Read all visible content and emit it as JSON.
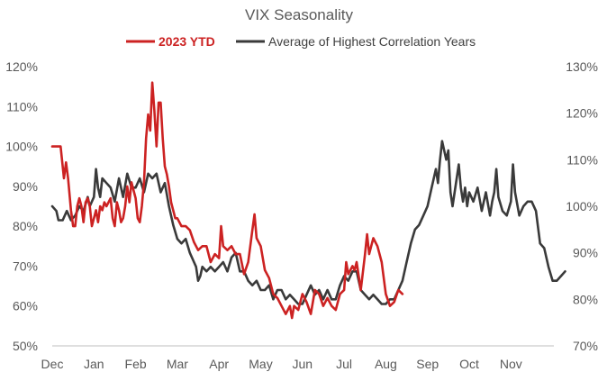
{
  "chart_data": {
    "type": "line",
    "title": "VIX Seasonality",
    "xlabel": "",
    "ylabel_left": "",
    "ylabel_right": "",
    "x_tick_labels": [
      "Dec",
      "Jan",
      "Feb",
      "Mar",
      "Apr",
      "May",
      "Jun",
      "Jul",
      "Aug",
      "Sep",
      "Oct",
      "Nov"
    ],
    "y_left_ticks": [
      "50%",
      "60%",
      "70%",
      "80%",
      "90%",
      "100%",
      "110%",
      "120%"
    ],
    "y_right_ticks": [
      "70%",
      "80%",
      "90%",
      "100%",
      "110%",
      "120%",
      "130%"
    ],
    "ylim_left": [
      50,
      120
    ],
    "ylim_right": [
      70,
      130
    ],
    "grid": false,
    "legend_position": "top-center",
    "x_unit": "months since start of December",
    "series": [
      {
        "name": "2023 YTD",
        "color": "#cc2222",
        "axis": "left",
        "label_bold": true,
        "points": [
          [
            0.0,
            100
          ],
          [
            0.1,
            100
          ],
          [
            0.2,
            100
          ],
          [
            0.28,
            92
          ],
          [
            0.33,
            96
          ],
          [
            0.38,
            92
          ],
          [
            0.45,
            84
          ],
          [
            0.5,
            80
          ],
          [
            0.55,
            80
          ],
          [
            0.6,
            85
          ],
          [
            0.65,
            87
          ],
          [
            0.7,
            85
          ],
          [
            0.75,
            81
          ],
          [
            0.8,
            86
          ],
          [
            0.85,
            87
          ],
          [
            0.9,
            85
          ],
          [
            0.95,
            80
          ],
          [
            1.0,
            82
          ],
          [
            1.05,
            84
          ],
          [
            1.1,
            81
          ],
          [
            1.15,
            85
          ],
          [
            1.2,
            84
          ],
          [
            1.25,
            86
          ],
          [
            1.3,
            85
          ],
          [
            1.35,
            86
          ],
          [
            1.4,
            87
          ],
          [
            1.45,
            82
          ],
          [
            1.5,
            80
          ],
          [
            1.55,
            86
          ],
          [
            1.6,
            84
          ],
          [
            1.65,
            81
          ],
          [
            1.7,
            82
          ],
          [
            1.75,
            85
          ],
          [
            1.8,
            90
          ],
          [
            1.85,
            86
          ],
          [
            1.9,
            91
          ],
          [
            1.95,
            89
          ],
          [
            2.0,
            87
          ],
          [
            2.05,
            82
          ],
          [
            2.1,
            81
          ],
          [
            2.15,
            85
          ],
          [
            2.2,
            91
          ],
          [
            2.25,
            102
          ],
          [
            2.3,
            108
          ],
          [
            2.35,
            104
          ],
          [
            2.4,
            116
          ],
          [
            2.45,
            109
          ],
          [
            2.5,
            100
          ],
          [
            2.55,
            111
          ],
          [
            2.6,
            111
          ],
          [
            2.65,
            102
          ],
          [
            2.7,
            95
          ],
          [
            2.75,
            93
          ],
          [
            2.8,
            90
          ],
          [
            2.85,
            86
          ],
          [
            2.9,
            84
          ],
          [
            2.95,
            82
          ],
          [
            3.0,
            82
          ],
          [
            3.1,
            80
          ],
          [
            3.2,
            80
          ],
          [
            3.3,
            79
          ],
          [
            3.4,
            76
          ],
          [
            3.5,
            74
          ],
          [
            3.6,
            75
          ],
          [
            3.7,
            75
          ],
          [
            3.8,
            71
          ],
          [
            3.9,
            73
          ],
          [
            4.0,
            72
          ],
          [
            4.05,
            80
          ],
          [
            4.1,
            75
          ],
          [
            4.2,
            74
          ],
          [
            4.3,
            75
          ],
          [
            4.4,
            73
          ],
          [
            4.5,
            73
          ],
          [
            4.6,
            68
          ],
          [
            4.7,
            71
          ],
          [
            4.8,
            79
          ],
          [
            4.85,
            83
          ],
          [
            4.9,
            77
          ],
          [
            5.0,
            75
          ],
          [
            5.1,
            69
          ],
          [
            5.2,
            67
          ],
          [
            5.3,
            63
          ],
          [
            5.4,
            62
          ],
          [
            5.5,
            60
          ],
          [
            5.6,
            58
          ],
          [
            5.7,
            60
          ],
          [
            5.75,
            57
          ],
          [
            5.8,
            60
          ],
          [
            5.9,
            59
          ],
          [
            6.0,
            63
          ],
          [
            6.1,
            61
          ],
          [
            6.2,
            58
          ],
          [
            6.3,
            64
          ],
          [
            6.4,
            63
          ],
          [
            6.5,
            60
          ],
          [
            6.6,
            62
          ],
          [
            6.7,
            60
          ],
          [
            6.8,
            59
          ],
          [
            6.9,
            63
          ],
          [
            7.0,
            64
          ],
          [
            7.05,
            71
          ],
          [
            7.1,
            68
          ],
          [
            7.2,
            70
          ],
          [
            7.25,
            69
          ],
          [
            7.3,
            71
          ],
          [
            7.4,
            64
          ],
          [
            7.5,
            73
          ],
          [
            7.55,
            78
          ],
          [
            7.6,
            73
          ],
          [
            7.7,
            77
          ],
          [
            7.8,
            75
          ],
          [
            7.9,
            71
          ],
          [
            8.0,
            63
          ],
          [
            8.1,
            60
          ],
          [
            8.2,
            61
          ],
          [
            8.3,
            64
          ],
          [
            8.4,
            63
          ]
        ]
      },
      {
        "name": "Average of Highest Correlation Years",
        "color": "#3a3a3a",
        "axis": "right",
        "label_bold": false,
        "points": [
          [
            0.0,
            100
          ],
          [
            0.1,
            99
          ],
          [
            0.15,
            97
          ],
          [
            0.25,
            97
          ],
          [
            0.35,
            99
          ],
          [
            0.45,
            97
          ],
          [
            0.55,
            98
          ],
          [
            0.65,
            100
          ],
          [
            0.75,
            99
          ],
          [
            0.85,
            102
          ],
          [
            0.9,
            100
          ],
          [
            1.0,
            102
          ],
          [
            1.05,
            108
          ],
          [
            1.1,
            104
          ],
          [
            1.15,
            102
          ],
          [
            1.2,
            106
          ],
          [
            1.3,
            105
          ],
          [
            1.4,
            104
          ],
          [
            1.5,
            101
          ],
          [
            1.6,
            106
          ],
          [
            1.7,
            102
          ],
          [
            1.8,
            107
          ],
          [
            1.9,
            104
          ],
          [
            2.0,
            104
          ],
          [
            2.1,
            106
          ],
          [
            2.2,
            103
          ],
          [
            2.3,
            107
          ],
          [
            2.4,
            106
          ],
          [
            2.5,
            107
          ],
          [
            2.6,
            103
          ],
          [
            2.7,
            105
          ],
          [
            2.8,
            100
          ],
          [
            2.9,
            96
          ],
          [
            3.0,
            93
          ],
          [
            3.1,
            92
          ],
          [
            3.2,
            93
          ],
          [
            3.3,
            90
          ],
          [
            3.4,
            88
          ],
          [
            3.45,
            87
          ],
          [
            3.5,
            84
          ],
          [
            3.55,
            85
          ],
          [
            3.6,
            87
          ],
          [
            3.7,
            86
          ],
          [
            3.8,
            87
          ],
          [
            3.9,
            86
          ],
          [
            4.0,
            87
          ],
          [
            4.1,
            88
          ],
          [
            4.2,
            86
          ],
          [
            4.3,
            89
          ],
          [
            4.4,
            90
          ],
          [
            4.5,
            86
          ],
          [
            4.6,
            86
          ],
          [
            4.7,
            84
          ],
          [
            4.8,
            83
          ],
          [
            4.9,
            84
          ],
          [
            5.0,
            82
          ],
          [
            5.1,
            82
          ],
          [
            5.2,
            83
          ],
          [
            5.3,
            80
          ],
          [
            5.4,
            82
          ],
          [
            5.5,
            82
          ],
          [
            5.6,
            80
          ],
          [
            5.7,
            81
          ],
          [
            5.8,
            80
          ],
          [
            5.9,
            79
          ],
          [
            6.0,
            79
          ],
          [
            6.1,
            81
          ],
          [
            6.2,
            83
          ],
          [
            6.3,
            81
          ],
          [
            6.4,
            82
          ],
          [
            6.5,
            80
          ],
          [
            6.6,
            82
          ],
          [
            6.7,
            80
          ],
          [
            6.8,
            80
          ],
          [
            6.9,
            83
          ],
          [
            7.0,
            85
          ],
          [
            7.1,
            84
          ],
          [
            7.2,
            86
          ],
          [
            7.3,
            86
          ],
          [
            7.4,
            82
          ],
          [
            7.5,
            81
          ],
          [
            7.6,
            80
          ],
          [
            7.7,
            81
          ],
          [
            7.8,
            80
          ],
          [
            7.9,
            79
          ],
          [
            8.0,
            79
          ],
          [
            8.1,
            80
          ],
          [
            8.2,
            80
          ],
          [
            8.3,
            82
          ],
          [
            8.4,
            84
          ],
          [
            8.5,
            88
          ],
          [
            8.6,
            92
          ],
          [
            8.7,
            95
          ],
          [
            8.8,
            96
          ],
          [
            8.9,
            98
          ],
          [
            9.0,
            100
          ],
          [
            9.1,
            104
          ],
          [
            9.2,
            108
          ],
          [
            9.25,
            105
          ],
          [
            9.3,
            110
          ],
          [
            9.35,
            114
          ],
          [
            9.4,
            112
          ],
          [
            9.45,
            110
          ],
          [
            9.5,
            112
          ],
          [
            9.55,
            103
          ],
          [
            9.6,
            100
          ],
          [
            9.7,
            106
          ],
          [
            9.75,
            109
          ],
          [
            9.8,
            104
          ],
          [
            9.85,
            101
          ],
          [
            9.9,
            104
          ],
          [
            9.95,
            100
          ],
          [
            10.0,
            103
          ],
          [
            10.1,
            101
          ],
          [
            10.2,
            104
          ],
          [
            10.3,
            99
          ],
          [
            10.4,
            103
          ],
          [
            10.5,
            98
          ],
          [
            10.55,
            101
          ],
          [
            10.6,
            103
          ],
          [
            10.65,
            108
          ],
          [
            10.7,
            102
          ],
          [
            10.8,
            99
          ],
          [
            10.9,
            98
          ],
          [
            11.0,
            101
          ],
          [
            11.05,
            109
          ],
          [
            11.1,
            103
          ],
          [
            11.2,
            98
          ],
          [
            11.3,
            100
          ],
          [
            11.4,
            101
          ],
          [
            11.5,
            101
          ],
          [
            11.6,
            99
          ],
          [
            11.7,
            92
          ],
          [
            11.8,
            91
          ],
          [
            11.9,
            87
          ],
          [
            12.0,
            84
          ],
          [
            12.1,
            84
          ],
          [
            12.2,
            85
          ],
          [
            12.3,
            86
          ]
        ]
      }
    ]
  }
}
